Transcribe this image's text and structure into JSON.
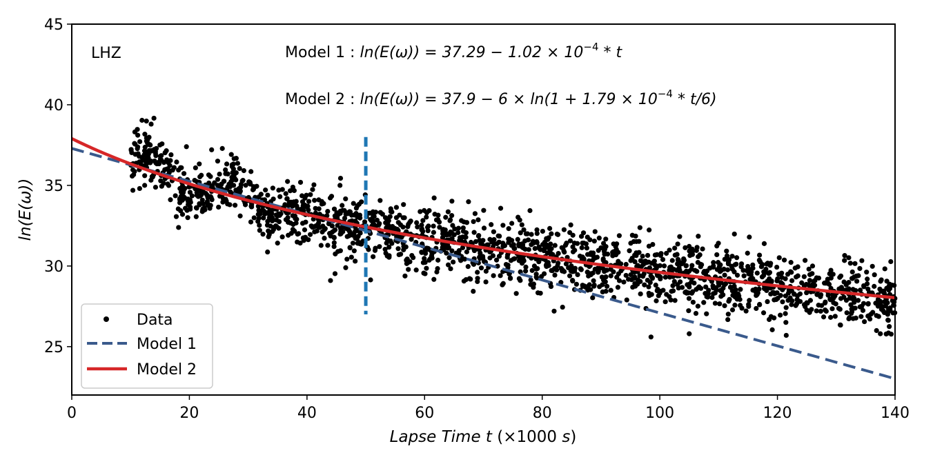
{
  "chart_data": {
    "type": "scatter",
    "title": "",
    "panel_label": "LHZ",
    "xlabel_parts": [
      "Lapse Time ",
      "t",
      " (×1000 ",
      "s",
      ")"
    ],
    "ylabel": "ln(E(ω))",
    "xlim": [
      0,
      140
    ],
    "ylim": [
      22,
      45
    ],
    "x_ticks": [
      0,
      20,
      40,
      60,
      80,
      100,
      120,
      140
    ],
    "y_ticks": [
      25,
      30,
      35,
      40,
      45
    ],
    "grid": false,
    "legend_position": "lower-left",
    "annotations": {
      "model1": {
        "prefix": "Model 1 :  ",
        "equation": "ln(E(ω)) = 37.29 − 1.02 × 10",
        "exponent": "−4",
        "suffix": " * t"
      },
      "model2": {
        "prefix": "Model 2 :  ",
        "equation": "ln(E(ω)) = 37.9 − 6 × ln(1 + 1.79 × 10",
        "exponent": "−4",
        "suffix": " * t/6)"
      }
    },
    "vertical_marker": {
      "x": 50,
      "y_range": [
        27,
        38
      ],
      "color": "#1f77b4"
    },
    "series": [
      {
        "name": "Data",
        "style": "points",
        "color": "#000000",
        "x_range": [
          10,
          140
        ],
        "count": 1900,
        "trend_formula": "37.9 - 6*ln(1 + 1.79e-4*t*1000/6)",
        "scatter_sd": 1.0,
        "highlights": [
          {
            "x": 13.5,
            "y": 38.8
          },
          {
            "x": 19.5,
            "y": 37.4
          },
          {
            "x": 44,
            "y": 29.1
          },
          {
            "x": 98.5,
            "y": 25.6
          },
          {
            "x": 105,
            "y": 25.8
          },
          {
            "x": 121.5,
            "y": 25.7
          },
          {
            "x": 137.5,
            "y": 25.8
          }
        ]
      },
      {
        "name": "Model 1",
        "style": "dashed",
        "color": "#3a5a8c",
        "formula": "37.29 - 1.02e-4*t*1000",
        "intercept": 37.29,
        "slope_per_1000s": -0.102
      },
      {
        "name": "Model 2",
        "style": "solid",
        "color": "#d62728",
        "formula": "37.9 - 6*ln(1 + 1.79e-4*t*1000/6)",
        "a": 37.9,
        "b": 6,
        "k_per_1000s": 0.179
      }
    ]
  }
}
